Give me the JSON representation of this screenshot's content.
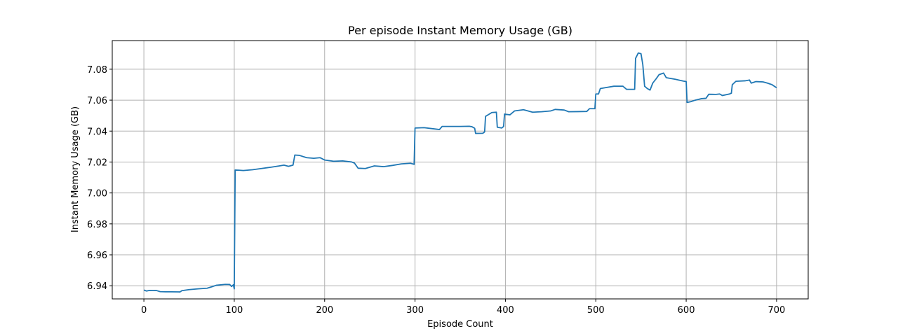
{
  "chart_data": {
    "type": "line",
    "title": "Per episode Instant Memory Usage (GB)",
    "xlabel": "Episode Count",
    "ylabel": "Instant Memory Usage (GB)",
    "xlim": [
      -35,
      735
    ],
    "ylim": [
      6.9315,
      7.0985
    ],
    "xticks": [
      0,
      100,
      200,
      300,
      400,
      500,
      600,
      700
    ],
    "yticks": [
      6.94,
      6.96,
      6.98,
      7.0,
      7.02,
      7.04,
      7.06,
      7.08
    ],
    "ytick_labels": [
      "6.94",
      "6.96",
      "6.98",
      "7.00",
      "7.02",
      "7.04",
      "7.06",
      "7.08"
    ],
    "grid": true,
    "series": [
      {
        "color": "#1f77b4",
        "points": [
          [
            0,
            6.9372
          ],
          [
            3,
            6.9366
          ],
          [
            6,
            6.937
          ],
          [
            14,
            6.9369
          ],
          [
            18,
            6.9362
          ],
          [
            24,
            6.9361
          ],
          [
            30,
            6.9361
          ],
          [
            40,
            6.936
          ],
          [
            42,
            6.9368
          ],
          [
            50,
            6.9375
          ],
          [
            60,
            6.938
          ],
          [
            70,
            6.9384
          ],
          [
            75,
            6.9393
          ],
          [
            80,
            6.9403
          ],
          [
            90,
            6.9409
          ],
          [
            95,
            6.9408
          ],
          [
            97,
            6.9395
          ],
          [
            99,
            6.9406
          ],
          [
            100,
            6.938
          ],
          [
            101,
            7.0148
          ],
          [
            105,
            7.0147
          ],
          [
            110,
            7.0145
          ],
          [
            120,
            7.015
          ],
          [
            130,
            7.0158
          ],
          [
            140,
            7.0166
          ],
          [
            150,
            7.0175
          ],
          [
            155,
            7.018
          ],
          [
            160,
            7.0172
          ],
          [
            165,
            7.018
          ],
          [
            167,
            7.0245
          ],
          [
            172,
            7.0243
          ],
          [
            180,
            7.0228
          ],
          [
            188,
            7.0224
          ],
          [
            195,
            7.0228
          ],
          [
            200,
            7.0213
          ],
          [
            210,
            7.0205
          ],
          [
            220,
            7.0207
          ],
          [
            230,
            7.02
          ],
          [
            233,
            7.0193
          ],
          [
            237,
            7.016
          ],
          [
            245,
            7.0158
          ],
          [
            255,
            7.0175
          ],
          [
            265,
            7.017
          ],
          [
            275,
            7.0178
          ],
          [
            285,
            7.0188
          ],
          [
            295,
            7.0192
          ],
          [
            299,
            7.0185
          ],
          [
            300,
            7.042
          ],
          [
            310,
            7.0422
          ],
          [
            320,
            7.0415
          ],
          [
            327,
            7.041
          ],
          [
            330,
            7.043
          ],
          [
            340,
            7.043
          ],
          [
            350,
            7.043
          ],
          [
            360,
            7.0431
          ],
          [
            363,
            7.0428
          ],
          [
            366,
            7.0418
          ],
          [
            367,
            7.0385
          ],
          [
            375,
            7.0386
          ],
          [
            377,
            7.0395
          ],
          [
            378,
            7.0495
          ],
          [
            385,
            7.052
          ],
          [
            390,
            7.0522
          ],
          [
            391,
            7.0425
          ],
          [
            396,
            7.042
          ],
          [
            398,
            7.043
          ],
          [
            399,
            7.051
          ],
          [
            405,
            7.0505
          ],
          [
            410,
            7.053
          ],
          [
            420,
            7.0538
          ],
          [
            430,
            7.0522
          ],
          [
            440,
            7.0525
          ],
          [
            450,
            7.053
          ],
          [
            455,
            7.054
          ],
          [
            465,
            7.0536
          ],
          [
            470,
            7.0525
          ],
          [
            480,
            7.0526
          ],
          [
            490,
            7.0527
          ],
          [
            493,
            7.0545
          ],
          [
            499,
            7.0545
          ],
          [
            500,
            7.064
          ],
          [
            503,
            7.064
          ],
          [
            505,
            7.0675
          ],
          [
            510,
            7.068
          ],
          [
            520,
            7.069
          ],
          [
            530,
            7.069
          ],
          [
            534,
            7.067
          ],
          [
            540,
            7.067
          ],
          [
            543,
            7.067
          ],
          [
            544,
            7.087
          ],
          [
            547,
            7.0905
          ],
          [
            550,
            7.09
          ],
          [
            552,
            7.083
          ],
          [
            554,
            7.069
          ],
          [
            557,
            7.0675
          ],
          [
            560,
            7.0665
          ],
          [
            563,
            7.071
          ],
          [
            567,
            7.074
          ],
          [
            570,
            7.0765
          ],
          [
            575,
            7.0775
          ],
          [
            578,
            7.0745
          ],
          [
            583,
            7.074
          ],
          [
            588,
            7.0735
          ],
          [
            593,
            7.0728
          ],
          [
            597,
            7.0723
          ],
          [
            600,
            7.072
          ],
          [
            601,
            7.0585
          ],
          [
            605,
            7.059
          ],
          [
            610,
            7.06
          ],
          [
            617,
            7.061
          ],
          [
            622,
            7.0612
          ],
          [
            625,
            7.0638
          ],
          [
            633,
            7.0637
          ],
          [
            637,
            7.064
          ],
          [
            640,
            7.063
          ],
          [
            648,
            7.064
          ],
          [
            650,
            7.0645
          ],
          [
            651,
            7.07
          ],
          [
            655,
            7.0722
          ],
          [
            665,
            7.0725
          ],
          [
            670,
            7.073
          ],
          [
            672,
            7.071
          ],
          [
            677,
            7.072
          ],
          [
            685,
            7.0718
          ],
          [
            690,
            7.071
          ],
          [
            695,
            7.07
          ],
          [
            700,
            7.068
          ]
        ]
      }
    ]
  }
}
